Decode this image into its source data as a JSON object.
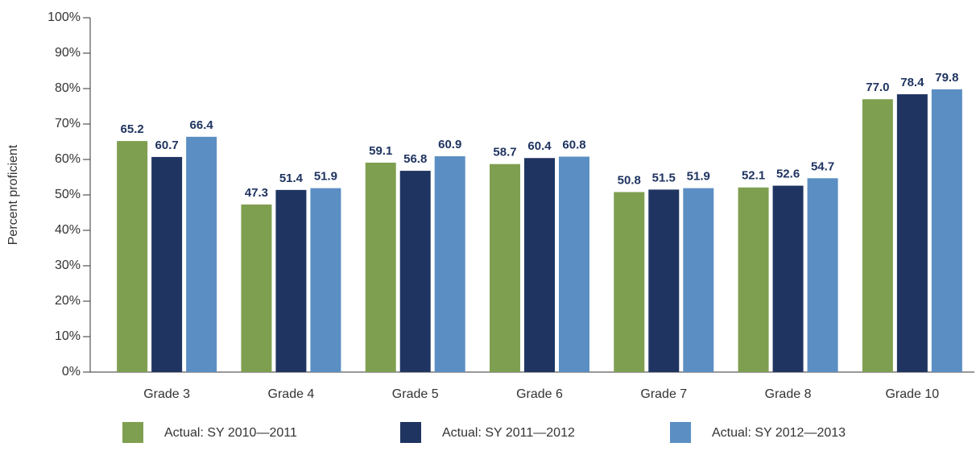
{
  "chart_data": {
    "type": "bar",
    "y_axis_label": "Percent proficient",
    "categories": [
      "Grade 3",
      "Grade 4",
      "Grade 5",
      "Grade 6",
      "Grade 7",
      "Grade 8",
      "Grade 10"
    ],
    "series": [
      {
        "name": "Actual: SY 2010—2011",
        "color": "#7f9f50",
        "values": [
          65.2,
          47.3,
          59.1,
          58.7,
          50.8,
          52.1,
          77.0
        ],
        "value_labels": [
          "65.2",
          "47.3",
          "59.1",
          "58.7",
          "50.8",
          "52.1",
          "77.0"
        ]
      },
      {
        "name": "Actual: SY 2011—2012",
        "color": "#1f3461",
        "values": [
          60.7,
          51.4,
          56.8,
          60.4,
          51.5,
          52.6,
          78.4
        ]
      },
      {
        "name": "Actual: SY 2012—2013",
        "color": "#5b8fc3",
        "values": [
          66.4,
          51.9,
          60.9,
          60.8,
          51.9,
          54.7,
          79.8
        ]
      }
    ],
    "ylim": [
      0,
      100
    ],
    "yticks": [
      {
        "value": 0,
        "label": "0%"
      },
      {
        "value": 10,
        "label": "10%"
      },
      {
        "value": 20,
        "label": "20%"
      },
      {
        "value": 30,
        "label": "30%"
      },
      {
        "value": 40,
        "label": "40%"
      },
      {
        "value": 50,
        "label": "50%"
      },
      {
        "value": 60,
        "label": "60%"
      },
      {
        "value": 70,
        "label": "70%"
      },
      {
        "value": 80,
        "label": "80%"
      },
      {
        "value": 90,
        "label": "90%"
      },
      {
        "value": 100,
        "label": "100%"
      }
    ],
    "grid": false,
    "legend": "bottom"
  }
}
